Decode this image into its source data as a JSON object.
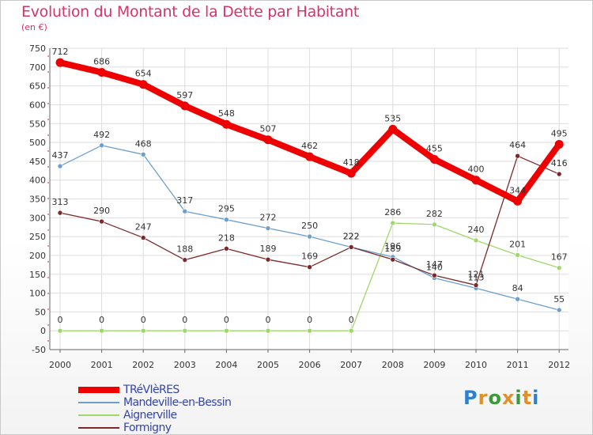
{
  "title": "Evolution du Montant de la Dette par Habitant",
  "unit_label": "(en €)",
  "brand": {
    "text": "Proxiti",
    "colors": [
      "#2f7fd0",
      "#e0902a",
      "#3a9a3a",
      "#e0902a",
      "#3a9a3a",
      "#e0902a",
      "#2f7fd0"
    ]
  },
  "chart_data": {
    "type": "line",
    "x": [
      "2000",
      "2001",
      "2002",
      "2003",
      "2004",
      "2005",
      "2006",
      "2007",
      "2008",
      "2009",
      "2010",
      "2011",
      "2012"
    ],
    "ylim": [
      -50,
      750
    ],
    "yticks": [
      "-50",
      "0",
      "50",
      "100",
      "150",
      "200",
      "250",
      "300",
      "350",
      "400",
      "450",
      "500",
      "550",
      "600",
      "650",
      "700",
      "750"
    ],
    "grid": true,
    "legend_position": "bottom-left",
    "series": [
      {
        "name": "TRéVIèRES",
        "color": "#ee0000",
        "values": [
          712,
          686,
          654,
          597,
          548,
          507,
          462,
          418,
          535,
          455,
          400,
          344,
          495
        ],
        "labels": [
          "712",
          "686",
          "654",
          "597",
          "548",
          "507",
          "462",
          "418",
          "535",
          "455",
          "400",
          "344",
          "495"
        ]
      },
      {
        "name": "Mandeville-en-Bessin",
        "color": "#6b9fd0",
        "values": [
          437,
          492,
          468,
          317,
          295,
          272,
          250,
          222,
          196,
          140,
          113,
          84,
          55
        ],
        "labels": [
          "437",
          "492",
          "468",
          "317",
          "295",
          "272",
          "250",
          "222",
          "196",
          "140",
          "113",
          "84",
          "55"
        ]
      },
      {
        "name": "Aignerville",
        "color": "#9fd86a",
        "values": [
          0,
          0,
          0,
          0,
          0,
          0,
          0,
          0,
          286,
          282,
          240,
          201,
          167
        ],
        "labels": [
          "0",
          "0",
          "0",
          "0",
          "0",
          "0",
          "0",
          "0",
          "286",
          "282",
          "240",
          "201",
          "167"
        ]
      },
      {
        "name": "Formigny",
        "color": "#7a2a2a",
        "values": [
          313,
          290,
          247,
          188,
          218,
          189,
          169,
          222,
          189,
          147,
          121,
          464,
          416
        ],
        "labels": [
          "313",
          "290",
          "247",
          "188",
          "218",
          "189",
          "169",
          "222",
          "189",
          "147",
          "121",
          "464",
          "416"
        ]
      }
    ]
  }
}
